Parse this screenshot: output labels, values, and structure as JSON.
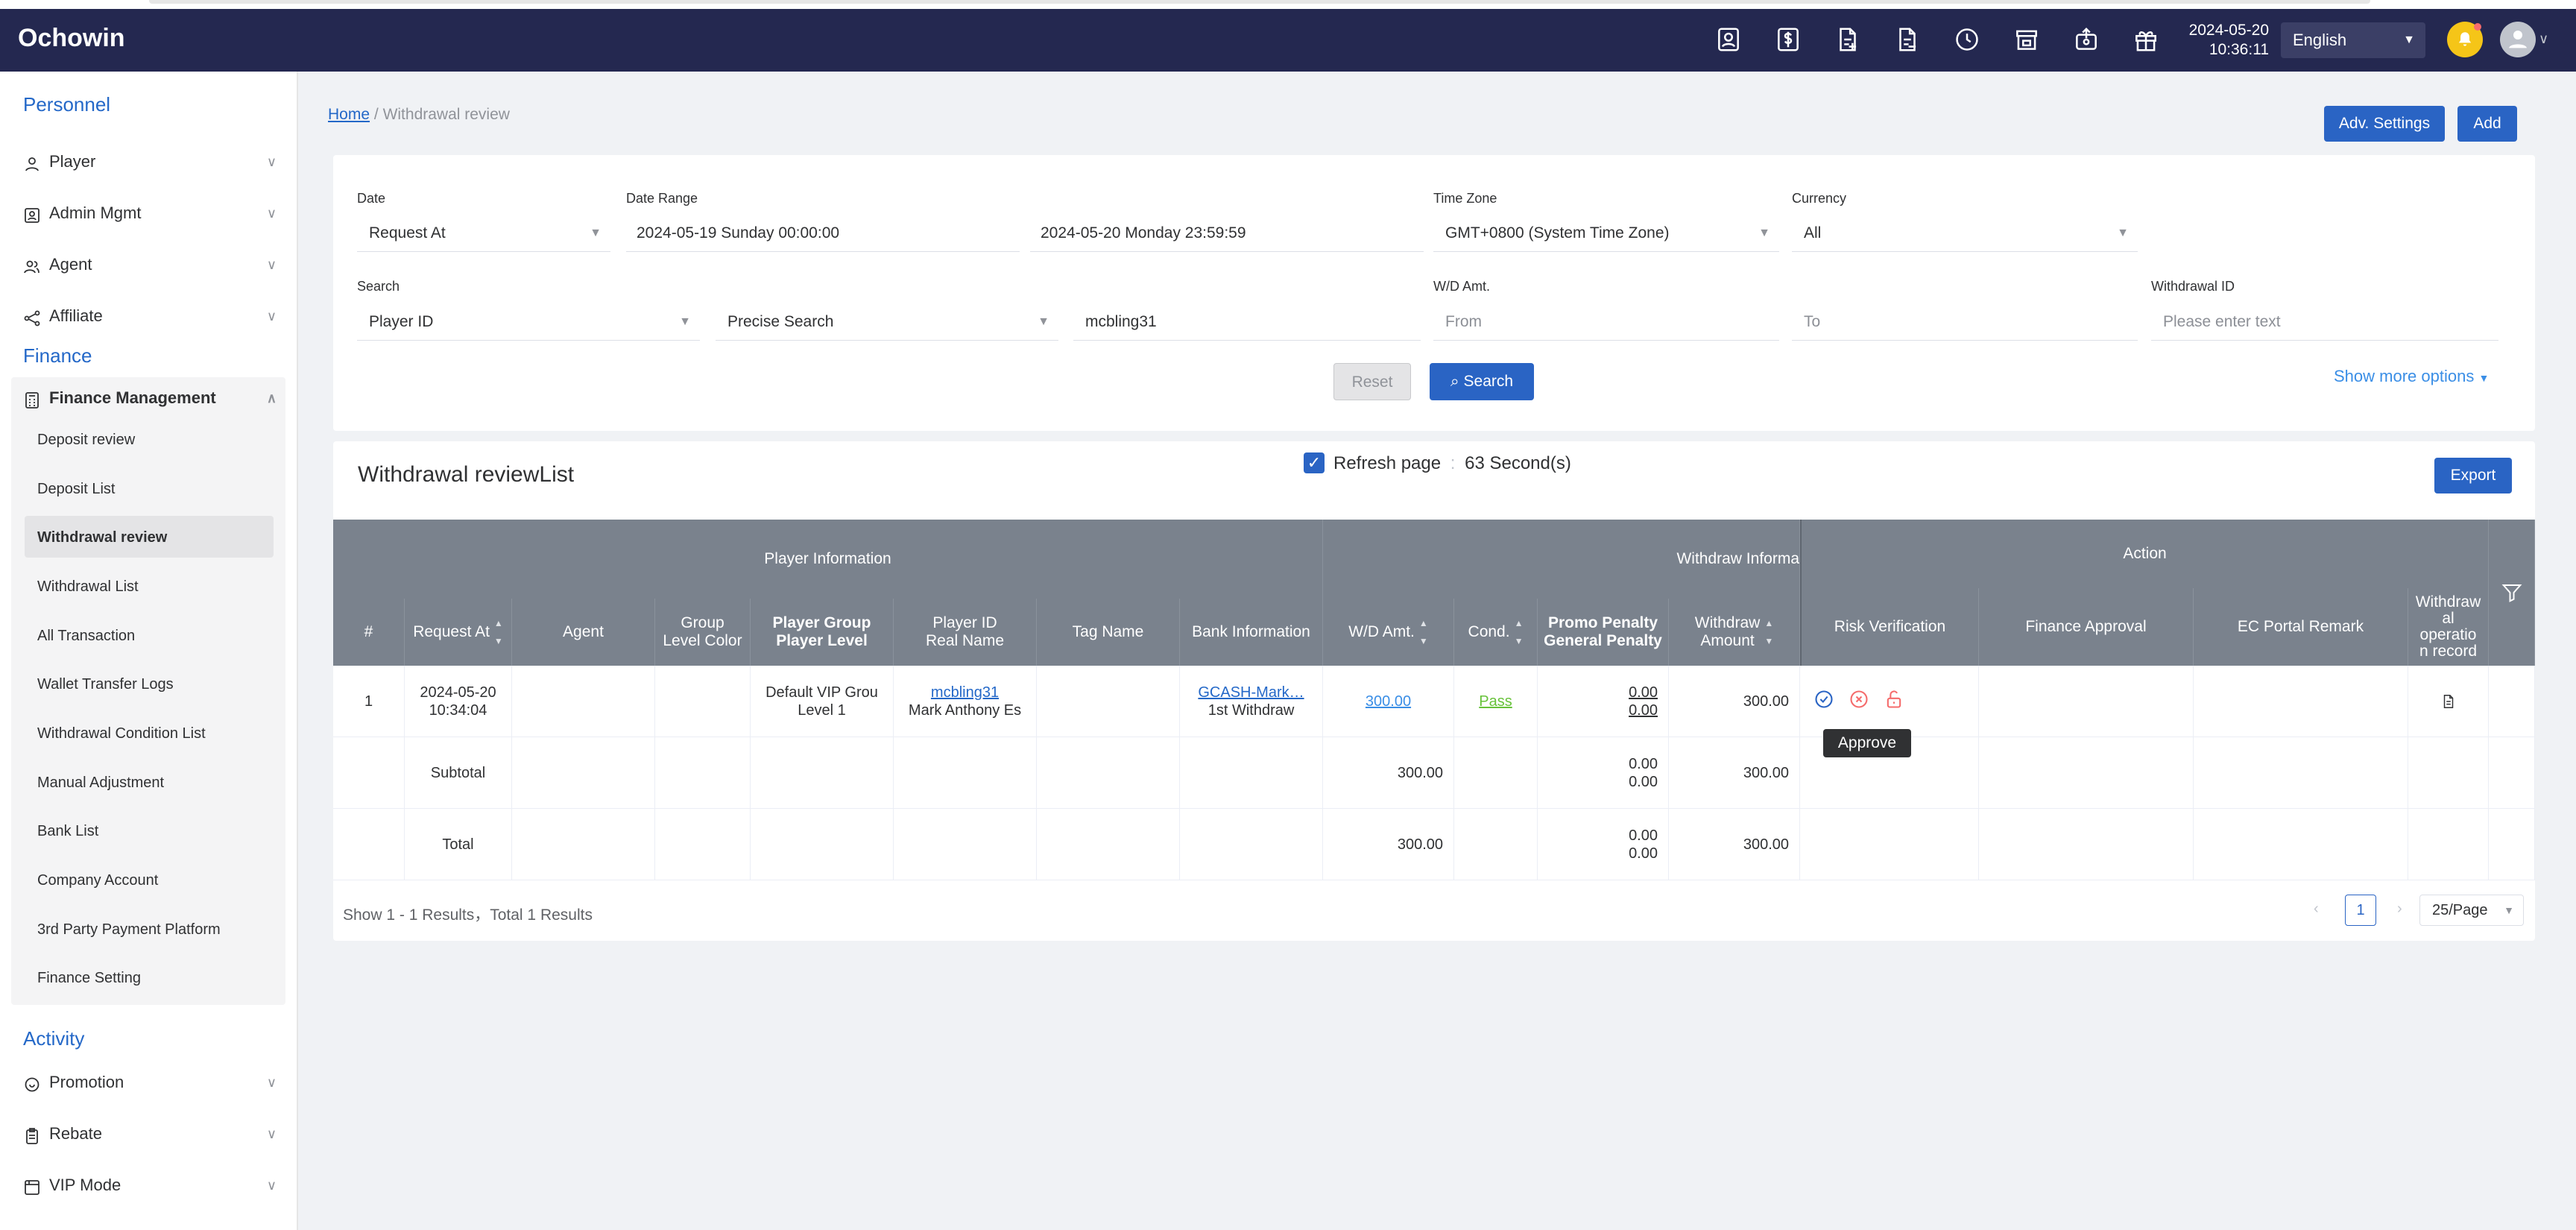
{
  "header": {
    "logo": "Ochowin",
    "date": "2024-05-20",
    "time": "10:36:11",
    "language": "English"
  },
  "sidebar": {
    "sections": {
      "personnel": "Personnel",
      "finance": "Finance",
      "activity": "Activity"
    },
    "personnel_items": [
      "Player",
      "Admin Mgmt",
      "Agent",
      "Affiliate"
    ],
    "finance_group": "Finance Management",
    "finance_sub": [
      "Deposit review",
      "Deposit List",
      "Withdrawal review",
      "Withdrawal List",
      "All Transaction",
      "Wallet Transfer Logs",
      "Withdrawal Condition List",
      "Manual Adjustment",
      "Bank List",
      "Company Account",
      "3rd Party Payment Platform",
      "Finance Setting"
    ],
    "activity_items": [
      "Promotion",
      "Rebate",
      "VIP Mode"
    ]
  },
  "breadcrumb": {
    "home": "Home",
    "sep": "/",
    "current": "Withdrawal review"
  },
  "toolbar": {
    "adv_settings": "Adv. Settings",
    "add": "Add"
  },
  "filter": {
    "date_label": "Date",
    "date_value": "Request At",
    "range_label": "Date Range",
    "range_start": "2024-05-19 Sunday 00:00:00",
    "range_end": "2024-05-20 Monday 23:59:59",
    "tz_label": "Time Zone",
    "tz_value": "GMT+0800 (System Time Zone)",
    "currency_label": "Currency",
    "currency_value": "All",
    "search_label": "Search",
    "search_field": "Player ID",
    "search_mode": "Precise Search",
    "search_value": "mcbling31",
    "wd_label": "W/D Amt.",
    "wd_from": "From",
    "wd_to": "To",
    "wid_label": "Withdrawal ID",
    "wid_placeholder": "Please enter text",
    "reset": "Reset",
    "search": "Search",
    "more": "Show more options"
  },
  "list": {
    "title": "Withdrawal reviewList",
    "refresh_label": "Refresh page",
    "refresh_sep": ":",
    "refresh_value": "63 Second(s)",
    "export": "Export"
  },
  "table": {
    "groups": {
      "player": "Player Information",
      "withdraw": "Withdraw Informa",
      "action": "Action"
    },
    "cols": {
      "num": "#",
      "request_at": "Request At",
      "agent": "Agent",
      "group_color": [
        "Group",
        "Level Color"
      ],
      "player_group": [
        "Player Group",
        "Player Level"
      ],
      "player_id": [
        "Player ID",
        "Real Name"
      ],
      "tag": "Tag Name",
      "bank": "Bank Information",
      "wd_amt": "W/D Amt.",
      "cond": "Cond.",
      "penalty": [
        "Promo Penalty",
        "General Penalty"
      ],
      "withdraw_amt": [
        "Withdraw",
        "Amount"
      ],
      "risk": "Risk Verification",
      "finance": "Finance Approval",
      "ec_remark": "EC Portal Remark",
      "op_record": [
        "Withdraw",
        "al",
        "operatio",
        "n record"
      ]
    },
    "row": {
      "num": "1",
      "date": "2024-05-20",
      "time": "10:34:04",
      "group": "Default VIP Grou",
      "level": "Level 1",
      "player_id": "mcbling31",
      "real_name": "Mark Anthony Es",
      "bank": "GCASH-Mark…",
      "bank_sub": "1st Withdraw",
      "wd_amt": "300.00",
      "cond": "Pass",
      "promo_penalty": "0.00",
      "general_penalty": "0.00",
      "withdraw_amt": "300.00"
    },
    "subtotal": {
      "label": "Subtotal",
      "wd_amt": "300.00",
      "p1": "0.00",
      "p2": "0.00",
      "withdraw_amt": "300.00"
    },
    "total": {
      "label": "Total",
      "wd_amt": "300.00",
      "p1": "0.00",
      "p2": "0.00",
      "withdraw_amt": "300.00"
    },
    "tooltip": "Approve"
  },
  "pagination": {
    "summary": "Show 1 - 1 Results，Total 1 Results",
    "page": "1",
    "size": "25/Page"
  },
  "colors": {
    "header_bg": "#242850",
    "accent": "#2a64c4",
    "table_head": "#7a828d",
    "pass": "#67c23a",
    "danger": "#f56c6c"
  }
}
